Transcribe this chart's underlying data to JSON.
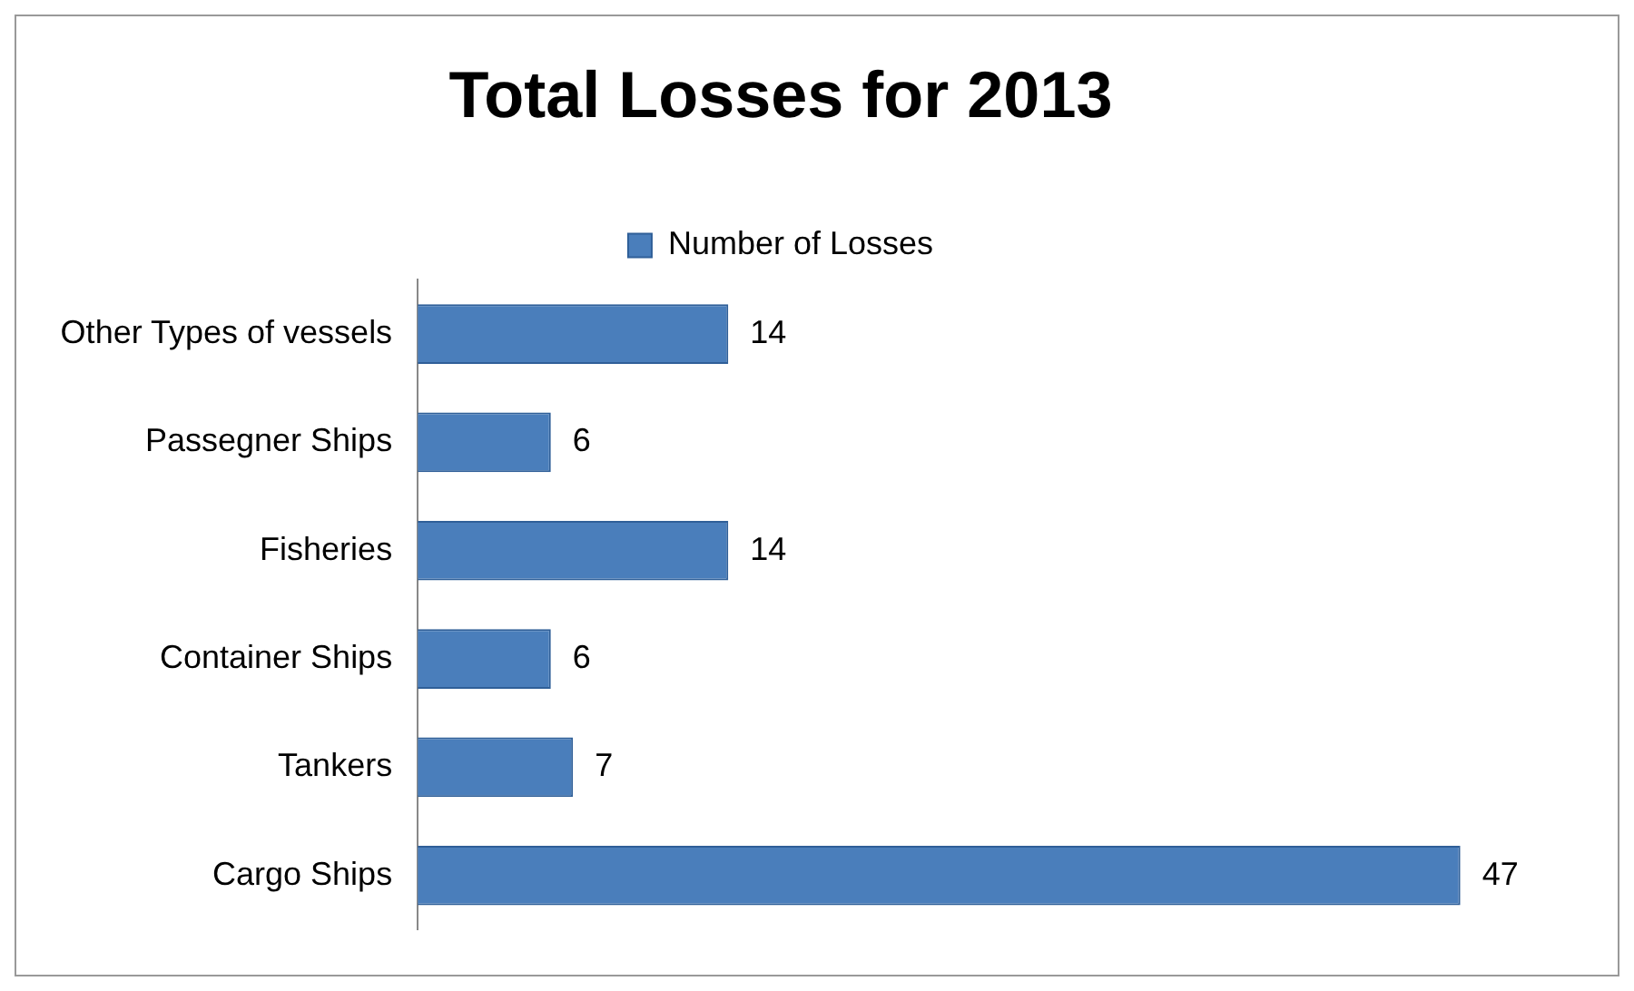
{
  "chart_data": {
    "type": "bar",
    "orientation": "horizontal",
    "title": "Total Losses for 2013",
    "categories": [
      "Other Types of vessels",
      "Passegner Ships",
      "Fisheries",
      "Container Ships",
      "Tankers",
      "Cargo Ships"
    ],
    "series": [
      {
        "name": "Number of Losses",
        "color": "#4a7ebb",
        "values": [
          14,
          6,
          14,
          6,
          7,
          47
        ]
      }
    ],
    "data_labels": true,
    "legend": "top",
    "grid": false
  }
}
